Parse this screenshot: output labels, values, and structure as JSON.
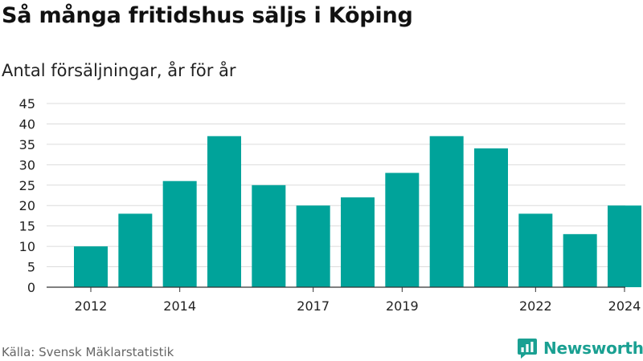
{
  "header": {
    "title": "Så många fritidshus säljs i Köping",
    "subtitle": "Antal försäljningar, år för år"
  },
  "footer": {
    "source": "Källa: Svensk Mäklarstatistik",
    "brand": "Newsworthy",
    "brand_icon": "newsworthy-logo-icon"
  },
  "colors": {
    "bar": "#00a39a",
    "grid": "#dcdcdc",
    "axis": "#333333",
    "text": "#222222",
    "brand": "#1aa092"
  },
  "chart_data": {
    "type": "bar",
    "title": "Så många fritidshus säljs i Köping",
    "subtitle": "Antal försäljningar, år för år",
    "xlabel": "",
    "ylabel": "",
    "categories": [
      2012,
      2013,
      2014,
      2015,
      2016,
      2017,
      2018,
      2019,
      2020,
      2021,
      2022,
      2023,
      2024
    ],
    "values": [
      10,
      18,
      26,
      37,
      25,
      20,
      22,
      28,
      37,
      34,
      18,
      13,
      20
    ],
    "ylim": [
      0,
      45
    ],
    "yticks": [
      0,
      5,
      10,
      15,
      20,
      25,
      30,
      35,
      40,
      45
    ],
    "xtick_labels": [
      "2012",
      "2014",
      "2017",
      "2019",
      "2022",
      "2024"
    ],
    "grid": true,
    "legend": "none"
  }
}
